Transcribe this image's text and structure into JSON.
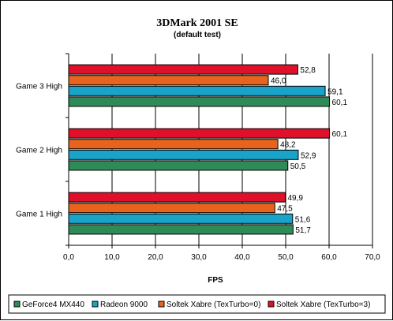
{
  "chart_data": {
    "type": "bar",
    "orientation": "horizontal",
    "title": "3DMark 2001 SE",
    "subtitle": "(default test)",
    "xlabel": "FPS",
    "ylabel": "",
    "xlim": [
      0,
      70
    ],
    "xticks": [
      "0,0",
      "10,0",
      "20,0",
      "30,0",
      "40,0",
      "50,0",
      "60,0",
      "70,0"
    ],
    "grid": "vertical major gridlines",
    "legend_position": "bottom",
    "categories": [
      "Game 1 High",
      "Game 2 High",
      "Game 3 High"
    ],
    "series": [
      {
        "name": "GeForce4 MX440",
        "color": "#2e8b57",
        "values": [
          51.7,
          50.5,
          60.1
        ],
        "labels": [
          "51,7",
          "50,5",
          "60,1"
        ]
      },
      {
        "name": "Radeon 9000",
        "color": "#1aa3c8",
        "values": [
          51.6,
          52.9,
          59.1
        ],
        "labels": [
          "51,6",
          "52,9",
          "59,1"
        ]
      },
      {
        "name": "Soltek Xabre (TexTurbo=0)",
        "color": "#e8641e",
        "values": [
          47.5,
          48.2,
          46.0
        ],
        "labels": [
          "47,5",
          "48,2",
          "46,0"
        ]
      },
      {
        "name": "Soltek Xabre (TexTurbo=3)",
        "color": "#e0102a",
        "values": [
          49.9,
          60.1,
          52.8
        ],
        "labels": [
          "49,9",
          "60,1",
          "52,8"
        ]
      }
    ]
  }
}
